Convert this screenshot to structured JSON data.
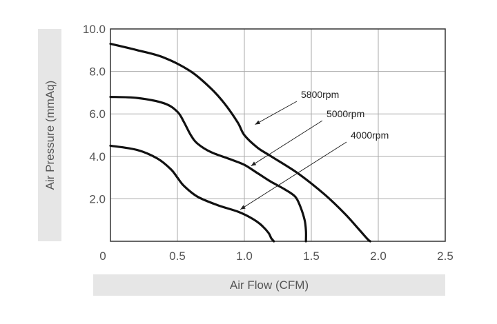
{
  "chart_data": {
    "type": "line",
    "xlabel": "Air Flow (CFM)",
    "ylabel": "Air Pressure (mmAq)",
    "xlim": [
      0,
      2.5
    ],
    "ylim": [
      0,
      10.0
    ],
    "x_ticks": [
      "0",
      "0.5",
      "1.0",
      "1.5",
      "2.0",
      "2.5"
    ],
    "x_tick_values": [
      0,
      0.5,
      1.0,
      1.5,
      2.0,
      2.5
    ],
    "y_ticks": [
      "2.0",
      "4.0",
      "6.0",
      "8.0",
      "10.0"
    ],
    "y_tick_values": [
      2.0,
      4.0,
      6.0,
      8.0,
      10.0
    ],
    "grid": true,
    "series": [
      {
        "name": "5800rpm",
        "x": [
          0.0,
          0.2,
          0.4,
          0.6,
          0.75,
          0.85,
          0.95,
          1.0,
          1.1,
          1.2,
          1.4,
          1.6,
          1.75,
          1.85,
          1.92,
          1.94
        ],
        "y": [
          9.3,
          9.0,
          8.65,
          8.0,
          7.2,
          6.5,
          5.6,
          5.0,
          4.4,
          4.0,
          3.2,
          2.2,
          1.3,
          0.6,
          0.1,
          0.0
        ]
      },
      {
        "name": "5000rpm",
        "x": [
          0.0,
          0.2,
          0.4,
          0.5,
          0.55,
          0.6,
          0.65,
          0.75,
          0.9,
          1.0,
          1.1,
          1.2,
          1.3,
          1.38,
          1.42,
          1.45,
          1.46,
          1.46
        ],
        "y": [
          6.8,
          6.75,
          6.5,
          6.1,
          5.6,
          5.0,
          4.6,
          4.2,
          3.85,
          3.6,
          3.2,
          2.8,
          2.45,
          2.1,
          1.6,
          1.0,
          0.5,
          0.0
        ]
      },
      {
        "name": "4000rpm",
        "x": [
          0.0,
          0.2,
          0.35,
          0.45,
          0.5,
          0.55,
          0.65,
          0.8,
          0.95,
          1.05,
          1.12,
          1.18,
          1.2,
          1.22
        ],
        "y": [
          4.5,
          4.3,
          3.9,
          3.4,
          3.0,
          2.6,
          2.1,
          1.7,
          1.4,
          1.1,
          0.8,
          0.4,
          0.15,
          0.0
        ]
      }
    ],
    "annotations": [
      {
        "text": "5800rpm",
        "points_to": {
          "x": 1.08,
          "y": 5.5
        }
      },
      {
        "text": "5000rpm",
        "points_to": {
          "x": 1.05,
          "y": 3.55
        }
      },
      {
        "text": "4000rpm",
        "points_to": {
          "x": 0.97,
          "y": 1.5
        }
      }
    ],
    "colors": {
      "curve": "#111111",
      "grid": "#aaaaaa",
      "frame": "#333333",
      "band": "#e6e6e6",
      "text": "#555555"
    }
  }
}
